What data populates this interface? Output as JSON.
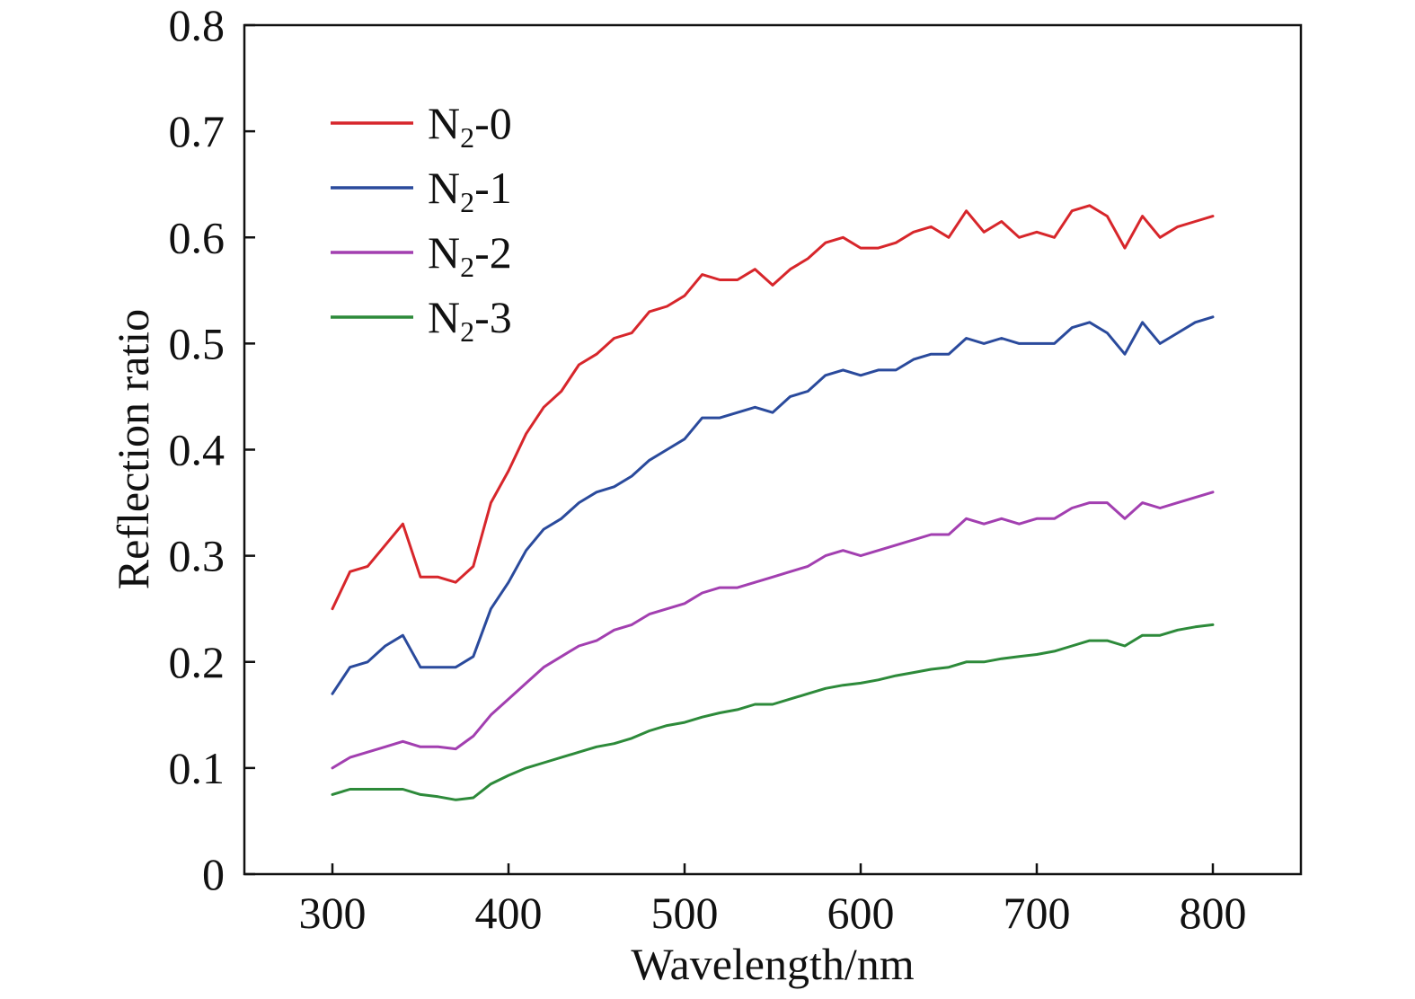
{
  "chart_data": {
    "type": "line",
    "title": "",
    "xlabel": "Wavelength/nm",
    "ylabel": "Reflection ratio",
    "xlim": [
      250,
      850
    ],
    "ylim": [
      0,
      0.8
    ],
    "xticks": [
      300,
      400,
      500,
      600,
      700,
      800
    ],
    "yticks": [
      0,
      0.1,
      0.2,
      0.3,
      0.4,
      0.5,
      0.6,
      0.7,
      0.8
    ],
    "xtick_labels": [
      "300",
      "400",
      "500",
      "600",
      "700",
      "800"
    ],
    "ytick_labels": [
      "0",
      "0.1",
      "0.2",
      "0.3",
      "0.4",
      "0.5",
      "0.6",
      "0.7",
      "0.8"
    ],
    "grid": false,
    "legend_position": "top-left",
    "x": [
      300,
      310,
      320,
      330,
      340,
      350,
      360,
      370,
      380,
      390,
      400,
      410,
      420,
      430,
      440,
      450,
      460,
      470,
      480,
      490,
      500,
      510,
      520,
      530,
      540,
      550,
      560,
      570,
      580,
      590,
      600,
      610,
      620,
      630,
      640,
      650,
      660,
      670,
      680,
      690,
      700,
      710,
      720,
      730,
      740,
      750,
      760,
      770,
      780,
      790,
      800
    ],
    "series": [
      {
        "name": "N₂-0",
        "legend_main": "N",
        "legend_sub": "2",
        "legend_suffix": "-0",
        "color": "#d7262b",
        "values": [
          0.25,
          0.285,
          0.29,
          0.31,
          0.33,
          0.28,
          0.28,
          0.275,
          0.29,
          0.35,
          0.38,
          0.415,
          0.44,
          0.455,
          0.48,
          0.49,
          0.505,
          0.51,
          0.53,
          0.535,
          0.545,
          0.565,
          0.56,
          0.56,
          0.57,
          0.555,
          0.57,
          0.58,
          0.595,
          0.6,
          0.59,
          0.59,
          0.595,
          0.605,
          0.61,
          0.6,
          0.625,
          0.605,
          0.615,
          0.6,
          0.605,
          0.6,
          0.625,
          0.63,
          0.62,
          0.59,
          0.62,
          0.6,
          0.61,
          0.615,
          0.62
        ]
      },
      {
        "name": "N₂-1",
        "legend_main": "N",
        "legend_sub": "2",
        "legend_suffix": "-1",
        "color": "#2a4a9c",
        "values": [
          0.17,
          0.195,
          0.2,
          0.215,
          0.225,
          0.195,
          0.195,
          0.195,
          0.205,
          0.25,
          0.275,
          0.305,
          0.325,
          0.335,
          0.35,
          0.36,
          0.365,
          0.375,
          0.39,
          0.4,
          0.41,
          0.43,
          0.43,
          0.435,
          0.44,
          0.435,
          0.45,
          0.455,
          0.47,
          0.475,
          0.47,
          0.475,
          0.475,
          0.485,
          0.49,
          0.49,
          0.505,
          0.5,
          0.505,
          0.5,
          0.5,
          0.5,
          0.515,
          0.52,
          0.51,
          0.49,
          0.52,
          0.5,
          0.51,
          0.52,
          0.525
        ]
      },
      {
        "name": "N₂-2",
        "legend_main": "N",
        "legend_sub": "2",
        "legend_suffix": "-2",
        "color": "#a23fb0",
        "values": [
          0.1,
          0.11,
          0.115,
          0.12,
          0.125,
          0.12,
          0.12,
          0.118,
          0.13,
          0.15,
          0.165,
          0.18,
          0.195,
          0.205,
          0.215,
          0.22,
          0.23,
          0.235,
          0.245,
          0.25,
          0.255,
          0.265,
          0.27,
          0.27,
          0.275,
          0.28,
          0.285,
          0.29,
          0.3,
          0.305,
          0.3,
          0.305,
          0.31,
          0.315,
          0.32,
          0.32,
          0.335,
          0.33,
          0.335,
          0.33,
          0.335,
          0.335,
          0.345,
          0.35,
          0.35,
          0.335,
          0.35,
          0.345,
          0.35,
          0.355,
          0.36
        ]
      },
      {
        "name": "N₂-3",
        "legend_main": "N",
        "legend_sub": "2",
        "legend_suffix": "-3",
        "color": "#2d8a3a",
        "values": [
          0.075,
          0.08,
          0.08,
          0.08,
          0.08,
          0.075,
          0.073,
          0.07,
          0.072,
          0.085,
          0.093,
          0.1,
          0.105,
          0.11,
          0.115,
          0.12,
          0.123,
          0.128,
          0.135,
          0.14,
          0.143,
          0.148,
          0.152,
          0.155,
          0.16,
          0.16,
          0.165,
          0.17,
          0.175,
          0.178,
          0.18,
          0.183,
          0.187,
          0.19,
          0.193,
          0.195,
          0.2,
          0.2,
          0.203,
          0.205,
          0.207,
          0.21,
          0.215,
          0.22,
          0.22,
          0.215,
          0.225,
          0.225,
          0.23,
          0.233,
          0.235
        ]
      }
    ]
  }
}
